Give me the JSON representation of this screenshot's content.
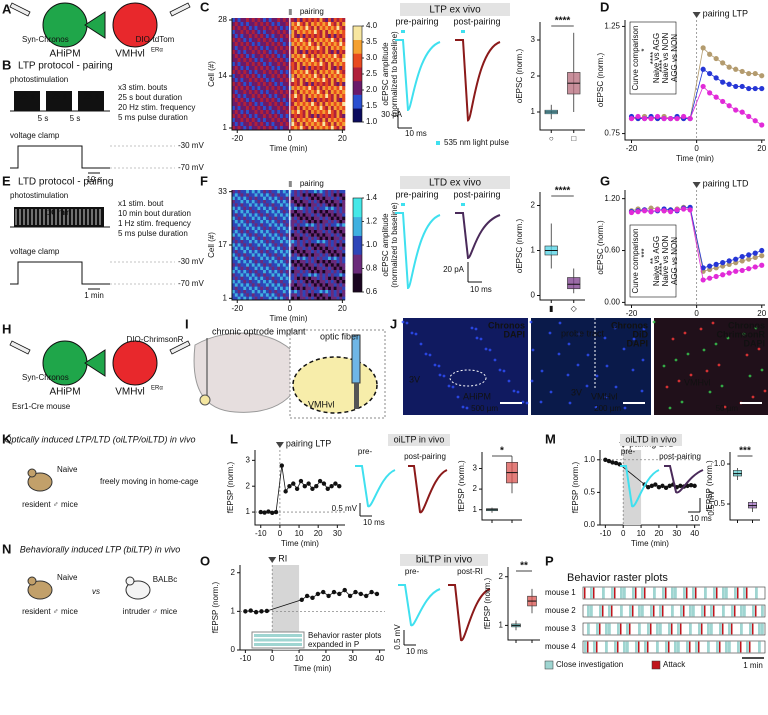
{
  "panels": {
    "A": {
      "label": "A",
      "virus_left": "Syn-Chronos",
      "region_left": "AHiPM",
      "virus_right": "DIO-tdTom",
      "region_right": "VMHvl",
      "region_right_sup": "ERα"
    },
    "B": {
      "label": "B",
      "title": "LTP protocol - pairing",
      "photostim": "photostimulation",
      "bout": "25 s",
      "gap": "5 s",
      "params": [
        "x3 stim. bouts",
        "25 s bout duration",
        "20 Hz stim. frequency",
        "5 ms pulse duration"
      ],
      "clamp": "voltage clamp",
      "v_high": "-30 mV",
      "v_low": "-70 mV",
      "scale": "10 s"
    },
    "C": {
      "label": "C",
      "title": "LTP ex vivo",
      "pre": "pre-pairing",
      "post": "post-pairing",
      "scale_y": "30 pA",
      "scale_x": "10 ms",
      "light": "535 nm light pulse",
      "stars": "****"
    },
    "D": {
      "label": "D",
      "legend_title": "Curve comparison",
      "legend": [
        "Naive vs AGG",
        "Naive vs NON",
        "AGG vs NON"
      ],
      "legend_stars": [
        "*",
        "****",
        "****"
      ]
    },
    "E": {
      "label": "E",
      "title": "LTD protocol - pairing",
      "photostim": "photostimulation",
      "bout": "10 min",
      "params": [
        "x1 stim. bout",
        "10 min bout duration",
        "1 Hz stim. frequency",
        "5 ms pulse duration"
      ],
      "clamp": "voltage clamp",
      "v_high": "-30 mV",
      "v_low": "-70 mV",
      "scale": "1 min"
    },
    "F": {
      "label": "F",
      "title": "LTD ex vivo",
      "pre": "pre-pairing",
      "post": "post-pairing",
      "scale_y": "20 pA",
      "scale_x": "10 ms",
      "stars": "****"
    },
    "G": {
      "label": "G",
      "legend_title": "Curve comparison",
      "legend": [
        "Naive vs AGG",
        "Naive vs NON",
        "AGG vs NON"
      ],
      "legend_stars": [
        "***",
        "**",
        "****"
      ]
    },
    "H": {
      "label": "H",
      "virus_left": "Syn-Chronos",
      "virus_right": "DIO-ChrimsonR",
      "region_left": "AHiPM",
      "region_right": "VMHvl",
      "region_right_sup": "ERα",
      "mouse": "Esr1-Cre mouse"
    },
    "I": {
      "label": "I",
      "implant": "chronic optrode implant",
      "fiber": "optic fiber",
      "region": "VMHvl"
    },
    "J": {
      "label": "J",
      "images": [
        {
          "channels": [
            "Chronos",
            "DAPI"
          ],
          "regions": [
            "3V",
            "AHiPM"
          ],
          "scale": "500 µm"
        },
        {
          "channels": [
            "Chronos",
            "DiD",
            "DAPI"
          ],
          "regions": [
            "probe tract",
            "3V",
            "VMHvl"
          ],
          "scale": "200 µm"
        },
        {
          "channels": [
            "Chronos",
            "ChrimsonR",
            "DAPI"
          ],
          "regions": [
            "VMHvl"
          ],
          "scale": "50 µm"
        }
      ]
    },
    "K": {
      "label": "K",
      "title": "Optically induced LTP/LTD (oiLTP/oiLTD) in vivo",
      "naive": "Naive",
      "resident": "resident ♂ mice",
      "context": "freely moving in home-cage"
    },
    "L": {
      "label": "L",
      "title": "oiLTP in vivo",
      "pre": "pre-",
      "post": "post-pairing",
      "scale_y": "0.5 mV",
      "scale_x": "10 ms",
      "stars": "*"
    },
    "M": {
      "label": "M",
      "title": "oiLTD in vivo",
      "pre": "pre-",
      "post": "post-pairing",
      "scale_y": "0.5 mV",
      "scale_x": "10 ms",
      "stars": "***"
    },
    "N": {
      "label": "N",
      "title": "Behaviorally induced LTP (biLTP) in vivo",
      "naive": "Naive",
      "resident": "resident ♂ mice",
      "vs": "vs",
      "strain": "BALBc",
      "intruder": "intruder ♂ mice"
    },
    "O": {
      "label": "O",
      "title": "biLTP in vivo",
      "pre": "pre-",
      "post": "post-RI",
      "scale_y": "0.5 mV",
      "scale_x": "10 ms",
      "stars": "**",
      "inset": "Behavior raster plots",
      "inset_ref": "expanded in P"
    },
    "P": {
      "label": "P",
      "title": "Behavior raster plots",
      "rows": [
        "mouse 1",
        "mouse 2",
        "mouse 3",
        "mouse 4"
      ],
      "legend": [
        "Close investigation",
        "Attack"
      ],
      "colors": [
        "#9fd5d1",
        "#c0141c"
      ],
      "scale": "1 min"
    }
  },
  "chart_data": [
    {
      "type": "line",
      "x": [
        -20,
        -18,
        -16,
        -14,
        -12,
        -10,
        -8,
        -6,
        -4,
        -2,
        2,
        4,
        6,
        8,
        10,
        12,
        14,
        16,
        18,
        20
      ],
      "series": [
        {
          "color": "#b39b6e",
          "values": [
            0.82,
            0.82,
            0.83,
            0.82,
            0.82,
            0.83,
            0.82,
            0.82,
            0.82,
            0.82,
            1.15,
            1.12,
            1.1,
            1.08,
            1.06,
            1.05,
            1.04,
            1.03,
            1.03,
            1.02
          ]
        },
        {
          "color": "#2636d6",
          "values": [
            0.83,
            0.82,
            0.82,
            0.83,
            0.82,
            0.82,
            0.82,
            0.83,
            0.82,
            0.82,
            1.05,
            1.03,
            1.01,
            0.99,
            0.98,
            0.97,
            0.97,
            0.96,
            0.96,
            0.96
          ]
        },
        {
          "color": "#e12ad8",
          "values": [
            0.82,
            0.83,
            0.82,
            0.82,
            0.83,
            0.82,
            0.82,
            0.82,
            0.83,
            0.82,
            0.97,
            0.94,
            0.92,
            0.9,
            0.88,
            0.86,
            0.85,
            0.83,
            0.81,
            0.79
          ]
        }
      ],
      "xlim": [
        -22,
        21
      ],
      "ylim": [
        0.72,
        1.28
      ],
      "xticks": [
        -20,
        0,
        20
      ],
      "yticks": [
        0.75,
        {
          "value": 1.25,
          "label": "1.25"
        }
      ],
      "x_label": "Time (min)",
      "y_label": "oEPSC (norm.)",
      "annotation": "pairing LTP"
    },
    {
      "type": "line",
      "x": [
        -20,
        -18,
        -16,
        -14,
        -12,
        -10,
        -8,
        -6,
        -4,
        -2,
        2,
        4,
        6,
        8,
        10,
        12,
        14,
        16,
        18,
        20
      ],
      "series": [
        {
          "color": "#b39b6e",
          "values": [
            1.06,
            1.08,
            1.07,
            1.09,
            1.08,
            1.06,
            1.07,
            1.08,
            1.1,
            1.09,
            0.36,
            0.38,
            0.4,
            0.42,
            0.44,
            0.46,
            0.48,
            0.5,
            0.52,
            0.54
          ]
        },
        {
          "color": "#2636d6",
          "values": [
            1.05,
            1.06,
            1.07,
            1.05,
            1.06,
            1.08,
            1.07,
            1.06,
            1.09,
            1.1,
            0.4,
            0.42,
            0.44,
            0.46,
            0.48,
            0.5,
            0.53,
            0.55,
            0.57,
            0.6
          ]
        },
        {
          "color": "#e12ad8",
          "values": [
            1.04,
            1.05,
            1.06,
            1.05,
            1.07,
            1.06,
            1.05,
            1.07,
            1.08,
            1.07,
            0.26,
            0.28,
            0.3,
            0.32,
            0.34,
            0.36,
            0.37,
            0.39,
            0.41,
            0.43
          ]
        }
      ],
      "xlim": [
        -22,
        21
      ],
      "ylim": [
        -0.03,
        1.3
      ],
      "xticks": [
        -20,
        0,
        20
      ],
      "yticks": [
        {
          "value": 0,
          "label": "0.00"
        },
        {
          "value": 0.6,
          "label": "0.60"
        },
        {
          "value": 1.2,
          "label": "1.20"
        }
      ],
      "x_label": "Time (min)",
      "y_label": "oEPSC (norm.)",
      "annotation": "pairing LTD"
    },
    {
      "type": "line",
      "x": [
        -10,
        -8,
        -6,
        -4,
        -2,
        1,
        3,
        5,
        7,
        9,
        11,
        13,
        15,
        17,
        19,
        21,
        23,
        25,
        27,
        29,
        31
      ],
      "series": [
        {
          "color": "#111111",
          "values": [
            1.0,
            0.98,
            1.02,
            0.97,
            1.0,
            2.8,
            1.8,
            2.0,
            2.1,
            1.9,
            2.2,
            2.0,
            2.1,
            1.9,
            2.0,
            2.2,
            2.1,
            1.9,
            2.0,
            2.1,
            2.0
          ]
        }
      ],
      "xlim": [
        -13,
        34
      ],
      "ylim": [
        0.5,
        3.4
      ],
      "xticks": [
        -10,
        0,
        10,
        20,
        30
      ],
      "yticks": [
        1,
        2,
        3
      ],
      "baseline": 1,
      "x_label": "Time (min)",
      "y_label": "fEPSP (norm.)",
      "annotation": "pairing LTP"
    },
    {
      "type": "line",
      "x": [
        -10,
        -8,
        -6,
        -4,
        -2,
        12,
        14,
        16,
        18,
        20,
        22,
        24,
        26,
        28,
        30,
        32,
        34,
        36,
        38,
        40
      ],
      "series": [
        {
          "color": "#111111",
          "values": [
            1.0,
            0.98,
            0.96,
            0.95,
            0.93,
            0.62,
            0.58,
            0.6,
            0.62,
            0.58,
            0.6,
            0.57,
            0.6,
            0.62,
            0.58,
            0.6,
            0.59,
            0.6,
            0.61,
            0.6
          ]
        }
      ],
      "xlim": [
        -13,
        43
      ],
      "ylim": [
        0,
        1.15
      ],
      "xticks": [
        -10,
        0,
        10,
        20,
        30,
        40
      ],
      "yticks": [
        {
          "value": 0,
          "label": "0.0"
        },
        {
          "value": 0.5,
          "label": "0.5"
        },
        {
          "value": 1,
          "label": "1.0"
        }
      ],
      "baseline": 1,
      "x_label": "Time (min)",
      "y_label": "fEPSP (norm.)",
      "annotation": "pairing LTD"
    },
    {
      "type": "line",
      "x": [
        -10,
        -8,
        -6,
        -4,
        -2,
        11,
        13,
        15,
        17,
        19,
        21,
        23,
        25,
        27,
        29,
        31,
        33,
        35,
        37,
        39
      ],
      "series": [
        {
          "color": "#111111",
          "values": [
            1.0,
            1.02,
            0.98,
            1.0,
            1.01,
            1.3,
            1.4,
            1.35,
            1.45,
            1.5,
            1.4,
            1.5,
            1.45,
            1.55,
            1.4,
            1.5,
            1.45,
            1.4,
            1.5,
            1.45
          ]
        }
      ],
      "xlim": [
        -12,
        42
      ],
      "ylim": [
        0,
        2.2
      ],
      "xticks": [
        -10,
        0,
        10,
        20,
        30,
        40
      ],
      "yticks": [
        0,
        1,
        2
      ],
      "baseline": 1,
      "x_label": "Time (min)",
      "y_label": "fEPSP (norm.)",
      "annotation": "RI"
    },
    {
      "type": "box",
      "categories": [
        "○",
        "□"
      ],
      "colors": [
        "#4fd3e6",
        "#b56a7a"
      ],
      "min": [
        0.8,
        1.0
      ],
      "q1": [
        0.95,
        1.5
      ],
      "median": [
        1.0,
        1.8
      ],
      "q3": [
        1.05,
        2.1
      ],
      "max": [
        1.2,
        3.2
      ],
      "ylim": [
        0.5,
        3.5
      ],
      "yticks": [
        1,
        2,
        3
      ],
      "y_label": "oEPSC (norm.)"
    },
    {
      "type": "box",
      "categories": [
        "▮",
        "◇"
      ],
      "colors": [
        "#4fd3e6",
        "#7a3a8a"
      ],
      "min": [
        0.6,
        0.05
      ],
      "q1": [
        0.9,
        0.15
      ],
      "median": [
        1.0,
        0.25
      ],
      "q3": [
        1.1,
        0.4
      ],
      "max": [
        1.6,
        0.6
      ],
      "ylim": [
        -0.1,
        2.3
      ],
      "yticks": [
        0,
        1,
        2
      ],
      "y_label": "oEPSC (norm.)"
    },
    {
      "type": "box",
      "categories": [
        null,
        null
      ],
      "colors": [
        "#5cc8c8",
        "#d9534f"
      ],
      "min": [
        0.85,
        1.8
      ],
      "q1": [
        0.95,
        2.3
      ],
      "median": [
        1.0,
        2.8
      ],
      "q3": [
        1.05,
        3.3
      ],
      "max": [
        1.1,
        3.6
      ],
      "ylim": [
        0.5,
        3.8
      ],
      "yticks": [
        1,
        2,
        3
      ],
      "y_label": "fEPSP (norm.)"
    },
    {
      "type": "box",
      "categories": [
        null,
        null
      ],
      "colors": [
        "#5cc8c8",
        "#a070c0"
      ],
      "min": [
        0.8,
        0.4
      ],
      "q1": [
        0.85,
        0.45
      ],
      "median": [
        0.88,
        0.48
      ],
      "q3": [
        0.92,
        0.52
      ],
      "max": [
        0.95,
        0.55
      ],
      "ylim": [
        0.3,
        1.15
      ],
      "yticks": [
        {
          "value": 0.5,
          "label": "0.5"
        },
        {
          "value": 1,
          "label": "1.0"
        }
      ],
      "y_label": "fEPSP (norm.)"
    },
    {
      "type": "box",
      "categories": [
        null,
        null
      ],
      "colors": [
        "#5cc8c8",
        "#d9534f"
      ],
      "min": [
        0.9,
        1.25
      ],
      "q1": [
        0.97,
        1.4
      ],
      "median": [
        1.0,
        1.5
      ],
      "q3": [
        1.03,
        1.6
      ],
      "max": [
        1.1,
        1.75
      ],
      "ylim": [
        0.7,
        2.2
      ],
      "yticks": [
        1,
        2
      ],
      "y_label": "fEPSP (norm.)"
    },
    {
      "type": "heatmap",
      "xlim": [
        -22,
        21
      ],
      "ylim": [
        0.5,
        28.5
      ],
      "xticks": [
        -20,
        0,
        20
      ],
      "yticks": [
        28,
        14,
        1
      ],
      "x_label": "Time (min)",
      "y_label": "Cell (#)",
      "annotation": "pairing",
      "colorbar_label": [
        "oEPSC amplitude",
        "(normalized to baseline)"
      ],
      "clim": [
        1,
        4
      ],
      "cticks": [
        {
          "value": 1,
          "label": "1.0"
        },
        {
          "value": 1.5,
          "label": "1.5"
        },
        {
          "value": 2,
          "label": "2.0"
        },
        {
          "value": 2.5,
          "label": "2.5"
        },
        {
          "value": 3,
          "label": "3.0"
        },
        {
          "value": 3.5,
          "label": "3.5"
        },
        {
          "value": 4,
          "label": "4.0"
        }
      ],
      "colormap": [
        "#0b0b5e",
        "#2a4fd0",
        "#6a1a6a",
        "#b0203a",
        "#e84a20",
        "#f5a030",
        "#f7e6a0"
      ]
    },
    {
      "type": "heatmap",
      "xlim": [
        -22,
        21
      ],
      "ylim": [
        0.5,
        33.5
      ],
      "xticks": [
        -20,
        0,
        20
      ],
      "yticks": [
        33,
        17,
        1
      ],
      "x_label": "Time (min)",
      "y_label": "Cell (#)",
      "annotation": "pairing",
      "colorbar_label": [
        "oEPSC amplitude",
        "(normalized to baseline)"
      ],
      "clim": [
        0.6,
        1.4
      ],
      "cticks": [
        {
          "value": 0.6,
          "label": "0.6"
        },
        {
          "value": 0.8,
          "label": "0.8"
        },
        {
          "value": 1,
          "label": "1.0"
        },
        {
          "value": 1.2,
          "label": "1.2"
        },
        {
          "value": 1.4,
          "label": "1.4"
        }
      ],
      "colormap": [
        "#1a0520",
        "#6a2a7a",
        "#2d45b8",
        "#3fb0e0",
        "#45e8e8"
      ]
    }
  ]
}
